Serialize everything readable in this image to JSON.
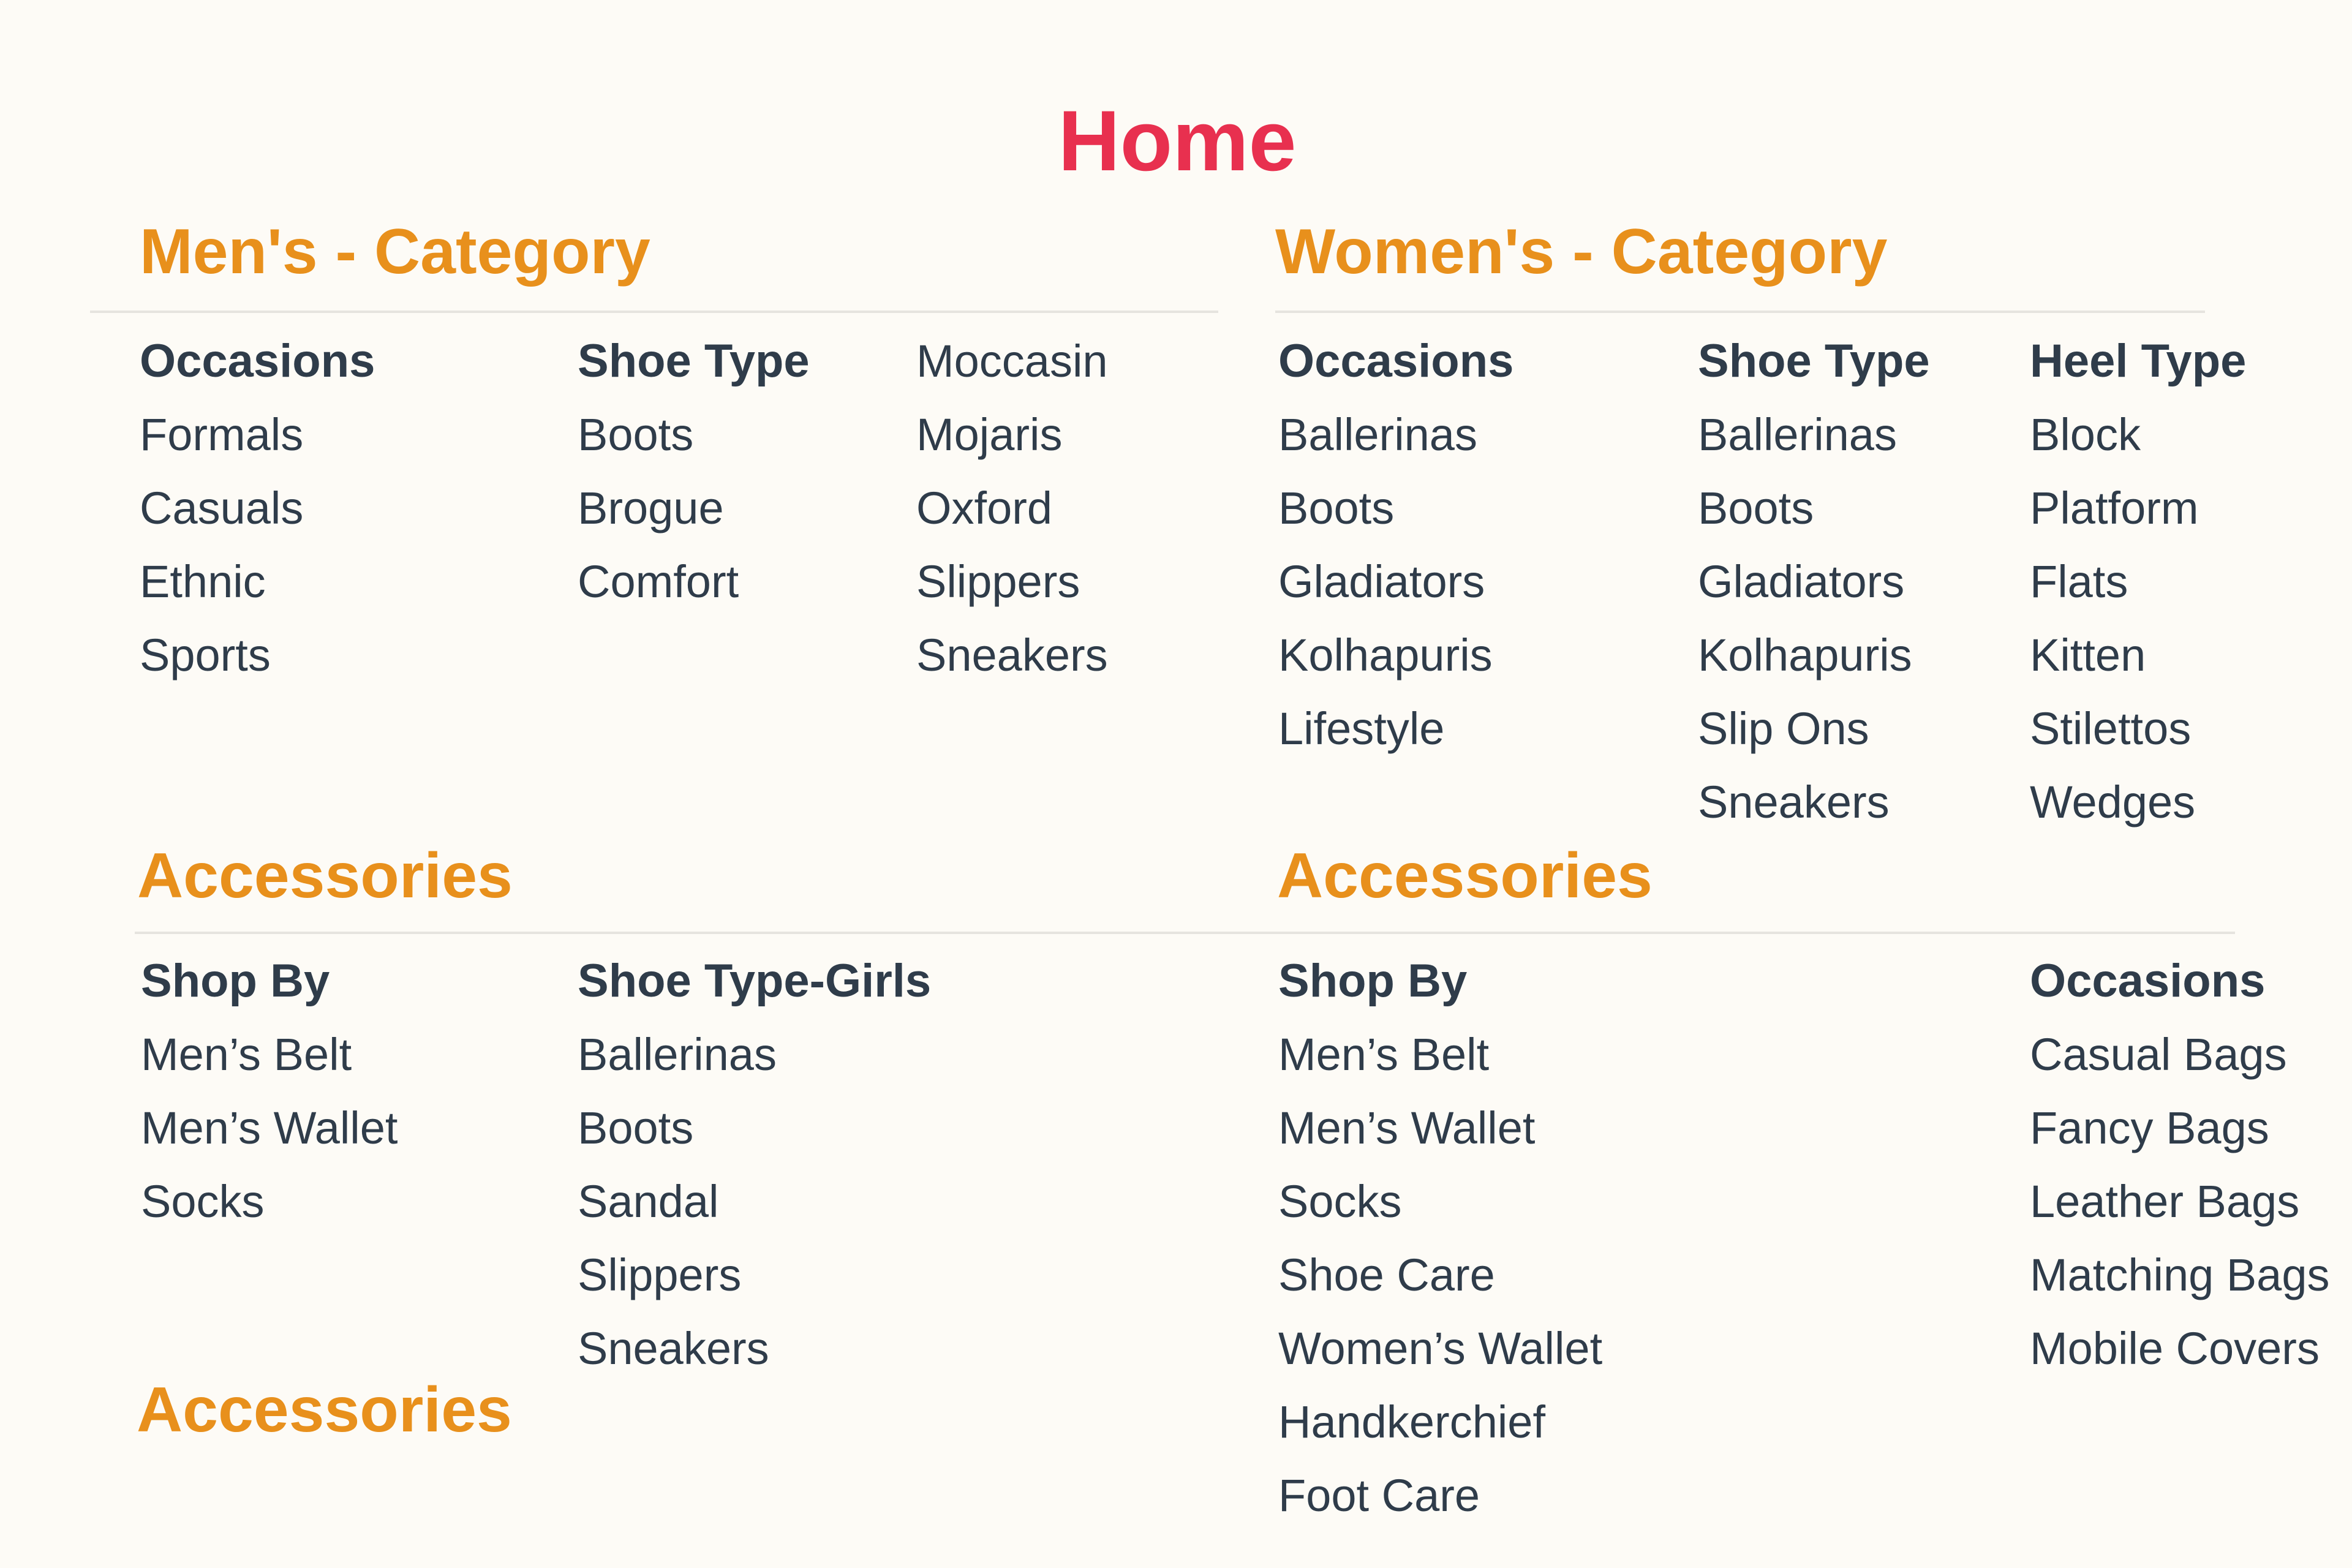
{
  "page_title": "Home",
  "colors": {
    "title": "#e8304f",
    "section": "#e8901c",
    "text": "#2f3c4a",
    "background": "#fdfbf6"
  },
  "mens": {
    "title": "Men's - Category",
    "occasions": {
      "heading": "Occasions",
      "items": [
        "Formals",
        "Casuals",
        "Ethnic",
        "Sports"
      ]
    },
    "shoe_type": {
      "heading": "Shoe Type",
      "items": [
        "Boots",
        "Brogue",
        "Comfort"
      ]
    },
    "shoe_type_more": {
      "heading": "",
      "items": [
        "Moccasin",
        "Mojaris",
        "Oxford",
        "Slippers",
        "Sneakers"
      ]
    },
    "accessories": {
      "title": "Accessories",
      "shop_by": {
        "heading": "Shop By",
        "items": [
          "Men’s Belt",
          "Men’s Wallet",
          "Socks"
        ]
      },
      "shoe_type_girls": {
        "heading": "Shoe Type-Girls",
        "items": [
          "Ballerinas",
          "Boots",
          "Sandal",
          "Slippers",
          "Sneakers"
        ]
      }
    },
    "accessories_2": {
      "title": "Accessories"
    }
  },
  "womens": {
    "title": "Women's - Category",
    "occasions": {
      "heading": "Occasions",
      "items": [
        "Ballerinas",
        "Boots",
        "Gladiators",
        "Kolhapuris",
        "Lifestyle"
      ]
    },
    "shoe_type": {
      "heading": "Shoe Type",
      "items": [
        "Ballerinas",
        "Boots",
        "Gladiators",
        "Kolhapuris",
        "Slip Ons",
        "Sneakers"
      ]
    },
    "heel_type": {
      "heading": "Heel Type",
      "items": [
        "Block",
        "Platform",
        "Flats",
        "Kitten",
        "Stilettos",
        "Wedges"
      ]
    },
    "accessories": {
      "title": "Accessories",
      "shop_by": {
        "heading": "Shop By",
        "items": [
          "Men’s Belt",
          "Men’s Wallet",
          "Socks",
          "Shoe Care",
          "Women’s Wallet",
          "Handkerchief",
          "Foot Care"
        ]
      },
      "occasions": {
        "heading": "Occasions",
        "items": [
          "Casual Bags",
          "Fancy Bags",
          "Leather Bags",
          "Matching Bags",
          "Mobile Covers"
        ]
      }
    }
  }
}
